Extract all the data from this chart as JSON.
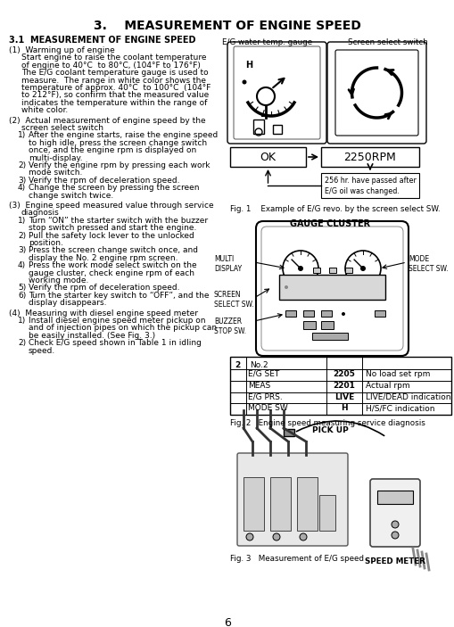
{
  "title": "3.    MEASUREMENT OF ENGINE SPEED",
  "bg_color": "#ffffff",
  "text_color": "#000000",
  "page_number": "6",
  "section_title": "3.1  MEASUREMENT OF ENGINE SPEED",
  "fig1_label": "E/G water temp. gauge",
  "fig1_label2": "Screen select switch",
  "fig1_caption": "Fig. 1    Example of E/G revo. by the screen select SW.",
  "fig1_ok": "OK",
  "fig1_rpm": "2250RPM",
  "fig1_note": "256 hr. have passed after\nE/G oil was changed.",
  "fig2_caption": "GAUGE CLUSTER",
  "fig2_table_caption": "Fig. 2   Engine speed measuring service diagnosis",
  "fig2_table_rows": [
    [
      "E/G SET",
      "2205",
      "No load set rpm"
    ],
    [
      "MEAS",
      "2201",
      "Actual rpm"
    ],
    [
      "E/G PRS.",
      "LIVE",
      "LIVE/DEAD indication"
    ],
    [
      "MODE SW",
      "H",
      "H/S/FC indication"
    ]
  ],
  "fig3_caption": "Fig. 3   Measurement of E/G speed",
  "fig3_pickup": "PICK UP",
  "fig3_speedmeter": "SPEED METER"
}
